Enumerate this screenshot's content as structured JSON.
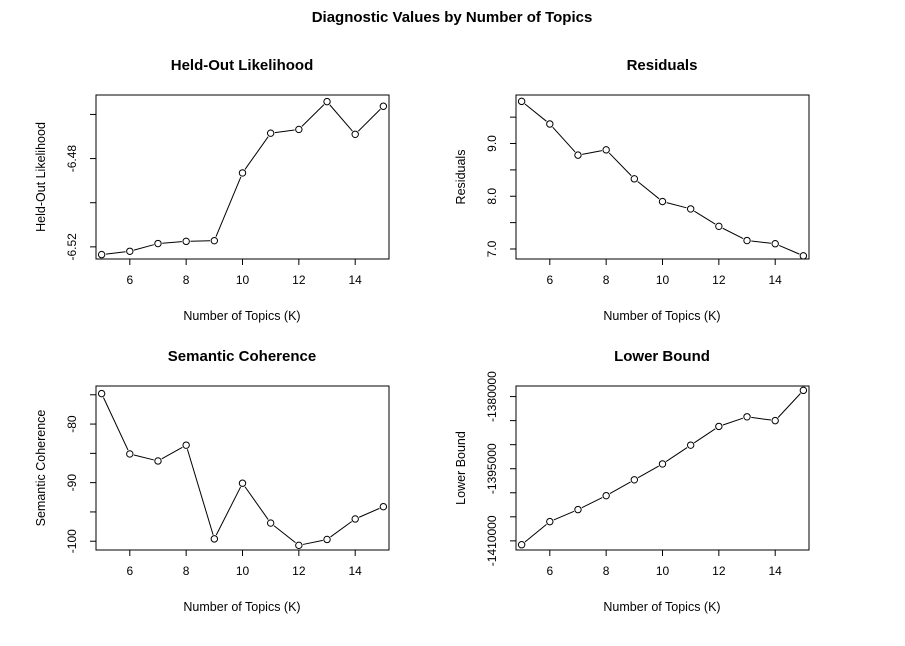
{
  "figure": {
    "title": "Diagnostic Values by Number of Topics"
  },
  "chart_data": [
    {
      "type": "line",
      "title": "Held-Out Likelihood",
      "xlabel": "Number of Topics (K)",
      "ylabel": "Held-Out Likelihood",
      "x": [
        5,
        6,
        7,
        8,
        9,
        10,
        11,
        12,
        13,
        14,
        15
      ],
      "y": [
        -6.5235,
        -6.522,
        -6.5185,
        -6.5175,
        -6.5172,
        -6.4865,
        -6.4685,
        -6.4668,
        -6.4542,
        -6.469,
        -6.4563
      ],
      "xlim": [
        4.8,
        15.2
      ],
      "ylim": [
        -6.5255,
        -6.4512
      ],
      "xticks": [
        6,
        8,
        10,
        12,
        14
      ],
      "xtick_labels": [
        "6",
        "8",
        "10",
        "12",
        "14"
      ],
      "yticks": [
        -6.52,
        -6.48
      ],
      "ytick_labels": [
        "-6.52",
        "-6.48"
      ],
      "yticks_unlabeled": [
        -6.5,
        -6.46
      ],
      "grid": false
    },
    {
      "type": "line",
      "title": "Residuals",
      "xlabel": "Number of Topics (K)",
      "ylabel": "Residuals",
      "x": [
        5,
        6,
        7,
        8,
        9,
        10,
        11,
        12,
        13,
        14,
        15
      ],
      "y": [
        9.8,
        9.37,
        8.78,
        8.88,
        8.33,
        7.9,
        7.76,
        7.43,
        7.16,
        7.1,
        6.87
      ],
      "xlim": [
        4.8,
        15.2
      ],
      "ylim": [
        6.81,
        9.92
      ],
      "xticks": [
        6,
        8,
        10,
        12,
        14
      ],
      "xtick_labels": [
        "6",
        "8",
        "10",
        "12",
        "14"
      ],
      "yticks": [
        7.0,
        8.0,
        9.0
      ],
      "ytick_labels": [
        "7.0",
        "8.0",
        "9.0"
      ],
      "yticks_unlabeled": [
        7.5,
        8.5,
        9.5
      ],
      "grid": false
    },
    {
      "type": "line",
      "title": "Semantic Coherence",
      "xlabel": "Number of Topics (K)",
      "ylabel": "Semantic Coherence",
      "x": [
        5,
        6,
        7,
        8,
        9,
        10,
        11,
        12,
        13,
        14,
        15
      ],
      "y": [
        -74.8,
        -85.1,
        -86.3,
        -83.6,
        -99.6,
        -90.1,
        -96.9,
        -100.7,
        -99.7,
        -96.2,
        -94.1
      ],
      "xlim": [
        4.8,
        15.2
      ],
      "ylim": [
        -101.5,
        -73.5
      ],
      "xticks": [
        6,
        8,
        10,
        12,
        14
      ],
      "xtick_labels": [
        "6",
        "8",
        "10",
        "12",
        "14"
      ],
      "yticks": [
        -100,
        -90,
        -80
      ],
      "ytick_labels": [
        "-100",
        "-90",
        "-80"
      ],
      "yticks_unlabeled": [
        -95,
        -85,
        -75
      ],
      "grid": false
    },
    {
      "type": "line",
      "title": "Lower Bound",
      "xlabel": "Number of Topics (K)",
      "ylabel": "Lower Bound",
      "x": [
        5,
        6,
        7,
        8,
        9,
        10,
        11,
        12,
        13,
        14,
        15
      ],
      "y": [
        -1410800,
        -1406000,
        -1403500,
        -1400600,
        -1397300,
        -1394000,
        -1390100,
        -1386200,
        -1384200,
        -1385000,
        -1378700
      ],
      "xlim": [
        4.8,
        15.2
      ],
      "ylim": [
        -1411900,
        -1377800
      ],
      "xticks": [
        6,
        8,
        10,
        12,
        14
      ],
      "xtick_labels": [
        "6",
        "8",
        "10",
        "12",
        "14"
      ],
      "yticks": [
        -1410000,
        -1395000,
        -1380000
      ],
      "ytick_labels": [
        "-1410000",
        "-1395000",
        "-1380000"
      ],
      "yticks_unlabeled": [
        -1405000,
        -1400000,
        -1390000,
        -1385000
      ],
      "grid": false
    }
  ]
}
